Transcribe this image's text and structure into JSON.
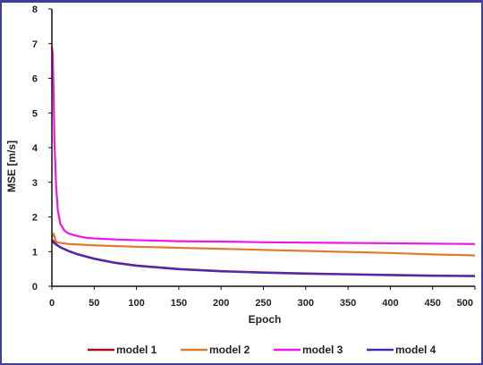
{
  "chart_data": {
    "type": "line",
    "xlabel": "Epoch",
    "ylabel": "MSE [m/s]",
    "xlim": [
      0,
      500
    ],
    "ylim": [
      0,
      8
    ],
    "xticks": [
      0,
      50,
      100,
      150,
      200,
      250,
      300,
      350,
      400,
      450,
      500
    ],
    "yticks": [
      0,
      1,
      2,
      3,
      4,
      5,
      6,
      7,
      8
    ],
    "grid": false,
    "legend_position": "bottom",
    "series": [
      {
        "name": "model 1",
        "color": "#a01020",
        "x": [
          0,
          5,
          10,
          20,
          30,
          50,
          75,
          100,
          150,
          200,
          250,
          300,
          350,
          400,
          450,
          500
        ],
        "values": [
          1.35,
          1.22,
          1.13,
          1.02,
          0.93,
          0.8,
          0.68,
          0.6,
          0.5,
          0.44,
          0.4,
          0.37,
          0.35,
          0.33,
          0.31,
          0.3
        ]
      },
      {
        "name": "model 2",
        "color": "#e07b2e",
        "x": [
          0,
          2,
          5,
          10,
          20,
          50,
          100,
          150,
          200,
          250,
          300,
          350,
          400,
          450,
          500
        ],
        "values": [
          1.4,
          1.52,
          1.28,
          1.25,
          1.22,
          1.18,
          1.14,
          1.11,
          1.08,
          1.05,
          1.02,
          0.99,
          0.96,
          0.92,
          0.89
        ]
      },
      {
        "name": "model 3",
        "color": "#ee18e6",
        "x": [
          0,
          1,
          2,
          3,
          5,
          7,
          10,
          15,
          20,
          30,
          40,
          50,
          75,
          100,
          150,
          200,
          250,
          300,
          350,
          400,
          450,
          500
        ],
        "values": [
          6.9,
          6.7,
          5.6,
          4.2,
          2.9,
          2.2,
          1.8,
          1.6,
          1.52,
          1.45,
          1.4,
          1.38,
          1.35,
          1.33,
          1.3,
          1.29,
          1.27,
          1.26,
          1.25,
          1.24,
          1.23,
          1.22
        ]
      },
      {
        "name": "model 4",
        "color": "#4b2bb5",
        "x": [
          0,
          5,
          10,
          20,
          30,
          50,
          75,
          100,
          150,
          200,
          250,
          300,
          350,
          400,
          450,
          500
        ],
        "values": [
          1.3,
          1.2,
          1.12,
          1.01,
          0.92,
          0.79,
          0.67,
          0.59,
          0.49,
          0.43,
          0.39,
          0.36,
          0.34,
          0.32,
          0.3,
          0.29
        ]
      }
    ]
  }
}
